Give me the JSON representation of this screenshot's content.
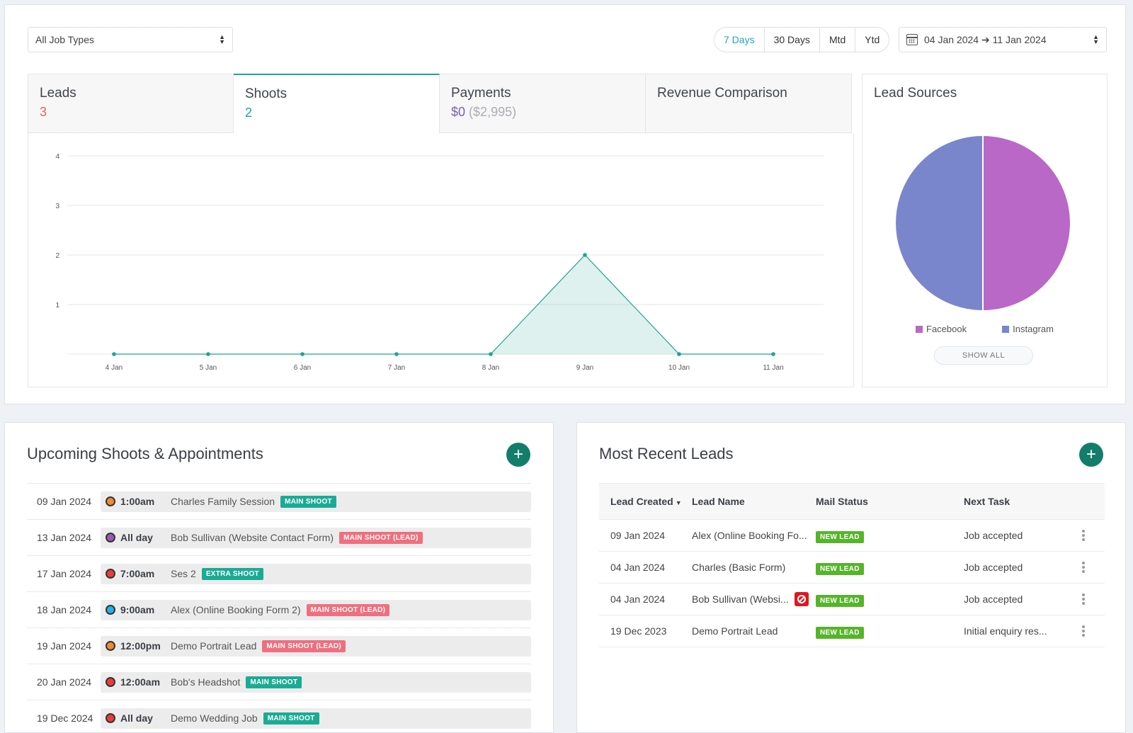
{
  "filters": {
    "job_type": "All Job Types",
    "ranges": [
      {
        "label": "7 Days",
        "active": true
      },
      {
        "label": "30 Days",
        "active": false
      },
      {
        "label": "Mtd",
        "active": false
      },
      {
        "label": "Ytd",
        "active": false
      }
    ],
    "date_range": "04 Jan 2024 ➔ 11 Jan 2024"
  },
  "tabs": [
    {
      "title": "Leads",
      "value": "3"
    },
    {
      "title": "Shoots",
      "value": "2"
    },
    {
      "title": "Payments",
      "value_main": "$0",
      "value_sub": "($2,995)"
    },
    {
      "title": "Revenue Comparison"
    }
  ],
  "chart_data": [
    {
      "type": "area",
      "x": [
        "4 Jan",
        "5 Jan",
        "6 Jan",
        "7 Jan",
        "8 Jan",
        "9 Jan",
        "10 Jan",
        "11 Jan"
      ],
      "series": [
        {
          "values": [
            0,
            0,
            0,
            0,
            0,
            2,
            0,
            0
          ]
        }
      ],
      "yticks": [
        "1",
        "2",
        "3",
        "4"
      ],
      "ylim": [
        0,
        4
      ],
      "grid": true,
      "color": "#1fa38e"
    },
    {
      "type": "pie",
      "title": "Lead Sources",
      "slices": [
        {
          "label": "Facebook",
          "value": 1,
          "color": "#b968c7"
        },
        {
          "label": "Instagram",
          "value": 1,
          "color": "#7986cb"
        }
      ],
      "legend": "bottom",
      "action_label": "SHOW ALL"
    }
  ],
  "appointments": {
    "title": "Upcoming Shoots & Appointments",
    "add_label": "+",
    "rows": [
      {
        "date": "09 Jan 2024",
        "color": "#f08a34",
        "time": "1:00am",
        "name": "Charles Family Session",
        "tag": "MAIN SHOOT",
        "tag_color": "teal"
      },
      {
        "date": "13 Jan 2024",
        "color": "#9b59b6",
        "time": "All day",
        "name": "Bob Sullivan (Website Contact Form)",
        "tag": "MAIN SHOOT (LEAD)",
        "tag_color": "pink"
      },
      {
        "date": "17 Jan 2024",
        "color": "#ee3b3b",
        "time": "7:00am",
        "name": "Ses 2",
        "tag": "EXTRA SHOOT",
        "tag_color": "teal"
      },
      {
        "date": "18 Jan 2024",
        "color": "#1fb3e8",
        "time": "9:00am",
        "name": "Alex (Online Booking Form 2)",
        "tag": "MAIN SHOOT (LEAD)",
        "tag_color": "pink"
      },
      {
        "date": "19 Jan 2024",
        "color": "#f08a34",
        "time": "12:00pm",
        "name": "Demo Portrait Lead",
        "tag": "MAIN SHOOT (LEAD)",
        "tag_color": "pink"
      },
      {
        "date": "20 Jan 2024",
        "color": "#ee3b3b",
        "time": "12:00am",
        "name": "Bob's Headshot",
        "tag": "MAIN SHOOT",
        "tag_color": "teal"
      },
      {
        "date": "19 Dec 2024",
        "color": "#ee3b3b",
        "time": "All day",
        "name": "Demo Wedding Job",
        "tag": "MAIN SHOOT",
        "tag_color": "teal"
      }
    ]
  },
  "leads": {
    "title": "Most Recent Leads",
    "add_label": "+",
    "columns": [
      "Lead Created",
      "Lead Name",
      "Mail Status",
      "Next Task"
    ],
    "rows": [
      {
        "created": "09 Jan 2024",
        "name": "Alex (Online Booking Fo...",
        "blocked": false,
        "status": "NEW LEAD",
        "task": "Job accepted"
      },
      {
        "created": "04 Jan 2024",
        "name": "Charles (Basic Form)",
        "blocked": false,
        "status": "NEW LEAD",
        "task": "Job accepted"
      },
      {
        "created": "04 Jan 2024",
        "name": "Bob Sullivan (Websi...",
        "blocked": true,
        "status": "NEW LEAD",
        "task": "Job accepted"
      },
      {
        "created": "19 Dec 2023",
        "name": "Demo Portrait Lead",
        "blocked": false,
        "status": "NEW LEAD",
        "task": "Initial enquiry res..."
      }
    ]
  }
}
